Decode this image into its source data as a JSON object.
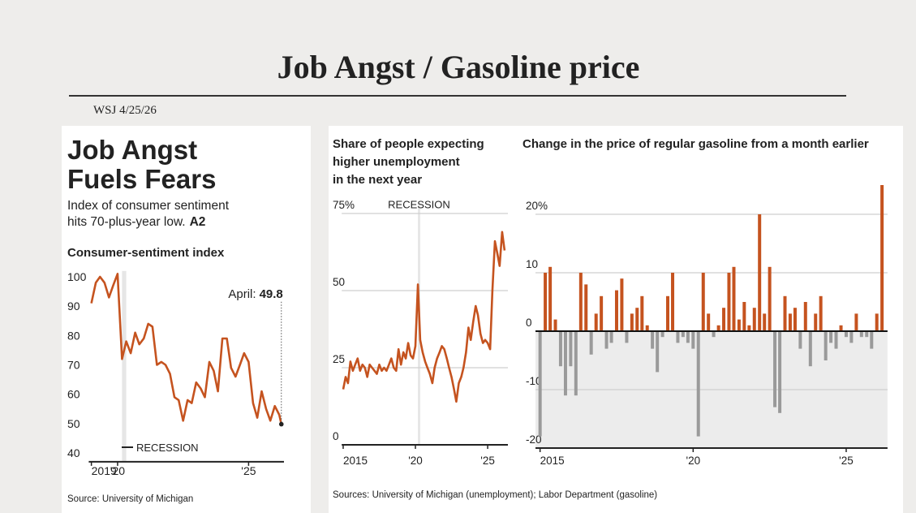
{
  "header": {
    "title": "Job Angst / Gasoline price",
    "note": "WSJ 4/25/26"
  },
  "sources": "Sources: University of Michigan (unemployment); Labor Department (gasoline)",
  "chart_data": [
    {
      "type": "line",
      "headline": [
        "Job Angst",
        "Fuels Fears"
      ],
      "deck": [
        "Index of consumer sentiment",
        "hits 70-plus-year low."
      ],
      "deck_ref": "A2",
      "title": "Consumer-sentiment index",
      "source": "Source: University of Michigan",
      "annotation": "April:",
      "recession_label": "RECESSION",
      "recession": [
        2020.17,
        2020.33
      ],
      "color": "#c5531f",
      "grid": false,
      "x": [
        2019,
        2019.17,
        2019.33,
        2019.5,
        2019.67,
        2019.83,
        2020,
        2020.17,
        2020.33,
        2020.5,
        2020.67,
        2020.83,
        2021,
        2021.17,
        2021.33,
        2021.5,
        2021.67,
        2021.83,
        2022,
        2022.17,
        2022.33,
        2022.5,
        2022.67,
        2022.83,
        2023,
        2023.17,
        2023.33,
        2023.5,
        2023.67,
        2023.83,
        2024,
        2024.17,
        2024.33,
        2024.5,
        2024.67,
        2024.83,
        2025,
        2025.17,
        2025.33,
        2025.5,
        2025.67,
        2025.83,
        2026,
        2026.17,
        2026.25
      ],
      "values": [
        91,
        98,
        100,
        98,
        93,
        97,
        101,
        72,
        78,
        74,
        81,
        77,
        79,
        84,
        83,
        70,
        71,
        70,
        67,
        59,
        58,
        51,
        58,
        57,
        64,
        62,
        59,
        71,
        68,
        61,
        79,
        79,
        69,
        66,
        70,
        74,
        71,
        57,
        52,
        61,
        55,
        51,
        56,
        53,
        49.8
      ],
      "xlim": [
        2018.9,
        2026.35
      ],
      "xticks": [
        2019,
        {
          "value": 2020,
          "label": "'20"
        },
        {
          "value": 2025,
          "label": "'25"
        }
      ],
      "ylim": [
        37,
        102
      ],
      "yticks": [
        40,
        50,
        60,
        70,
        80,
        90,
        100
      ]
    },
    {
      "type": "line",
      "title": [
        "Share of people expecting",
        "higher unemployment",
        "in the next year"
      ],
      "recession_label": "RECESSION",
      "recession": [
        2020.17,
        2020.33
      ],
      "color": "#c5531f",
      "grid": true,
      "x": [
        2015,
        2015.17,
        2015.33,
        2015.5,
        2015.67,
        2015.83,
        2016,
        2016.17,
        2016.33,
        2016.5,
        2016.67,
        2016.83,
        2017,
        2017.17,
        2017.33,
        2017.5,
        2017.67,
        2017.83,
        2018,
        2018.17,
        2018.33,
        2018.5,
        2018.67,
        2018.83,
        2019,
        2019.17,
        2019.33,
        2019.5,
        2019.67,
        2019.83,
        2020,
        2020.17,
        2020.33,
        2020.5,
        2020.67,
        2020.83,
        2021,
        2021.17,
        2021.33,
        2021.5,
        2021.67,
        2021.83,
        2022,
        2022.17,
        2022.33,
        2022.5,
        2022.67,
        2022.83,
        2023,
        2023.17,
        2023.33,
        2023.5,
        2023.67,
        2023.83,
        2024,
        2024.17,
        2024.33,
        2024.5,
        2024.67,
        2024.83,
        2025,
        2025.17,
        2025.33,
        2025.5,
        2025.67,
        2025.83,
        2026,
        2026.17
      ],
      "values": [
        18,
        22,
        20,
        27,
        24,
        26,
        28,
        24,
        26,
        25,
        22,
        26,
        25,
        24,
        23,
        26,
        24,
        25,
        24,
        26,
        28,
        25,
        24,
        31,
        26,
        30,
        28,
        33,
        29,
        28,
        32,
        52,
        34,
        30,
        27,
        25,
        23,
        20,
        25,
        28,
        30,
        32,
        31,
        28,
        25,
        22,
        18,
        14,
        20,
        22,
        25,
        30,
        38,
        34,
        40,
        45,
        42,
        36,
        33,
        34,
        33,
        31,
        50,
        66,
        62,
        58,
        69,
        63
      ],
      "xlim": [
        2014.9,
        2026.4
      ],
      "xticks": [
        2015,
        {
          "value": 2020,
          "label": "'20"
        },
        {
          "value": 2025,
          "label": "'25"
        }
      ],
      "ylim": [
        0,
        78
      ],
      "yticks": [
        0,
        25,
        50,
        {
          "value": 75,
          "label": "75%"
        }
      ]
    },
    {
      "type": "bar",
      "title": "Change in the price of regular gasoline from a month earlier",
      "positive_color": "#c5531f",
      "negative_color": "#9a9a9a",
      "grid": true,
      "x": [
        2015,
        2015.17,
        2015.33,
        2015.5,
        2015.67,
        2015.83,
        2016,
        2016.17,
        2016.33,
        2016.5,
        2016.67,
        2016.83,
        2017,
        2017.17,
        2017.33,
        2017.5,
        2017.67,
        2017.83,
        2018,
        2018.17,
        2018.33,
        2018.5,
        2018.67,
        2018.83,
        2019,
        2019.17,
        2019.33,
        2019.5,
        2019.67,
        2019.83,
        2020,
        2020.17,
        2020.33,
        2020.5,
        2020.67,
        2020.83,
        2021,
        2021.17,
        2021.33,
        2021.5,
        2021.67,
        2021.83,
        2022,
        2022.17,
        2022.33,
        2022.5,
        2022.67,
        2022.83,
        2023,
        2023.17,
        2023.33,
        2023.5,
        2023.67,
        2023.83,
        2024,
        2024.17,
        2024.33,
        2024.5,
        2024.67,
        2024.83,
        2025,
        2025.17,
        2025.33,
        2025.5,
        2025.67,
        2025.83,
        2026,
        2026.17
      ],
      "values": [
        -18,
        10,
        11,
        2,
        -6,
        -11,
        -6,
        -11,
        10,
        8,
        -4,
        3,
        6,
        -3,
        -2,
        7,
        9,
        -2,
        3,
        4,
        6,
        1,
        -3,
        -7,
        -1,
        6,
        10,
        -2,
        -1,
        -2,
        -3,
        -18,
        10,
        3,
        -1,
        1,
        4,
        10,
        11,
        2,
        5,
        1,
        4,
        20,
        3,
        11,
        -13,
        -14,
        6,
        3,
        4,
        -3,
        5,
        -6,
        3,
        6,
        -5,
        -2,
        -3,
        1,
        -1,
        -2,
        3,
        -1,
        -1,
        -3,
        3,
        25
      ],
      "xlim": [
        2014.85,
        2026.35
      ],
      "xticks": [
        2015,
        {
          "value": 2020,
          "label": "'20"
        },
        {
          "value": 2025,
          "label": "'25"
        }
      ],
      "ylim": [
        -20,
        26
      ],
      "yticks": [
        -20,
        -10,
        0,
        10,
        {
          "value": 20,
          "label": "20%"
        }
      ]
    }
  ]
}
